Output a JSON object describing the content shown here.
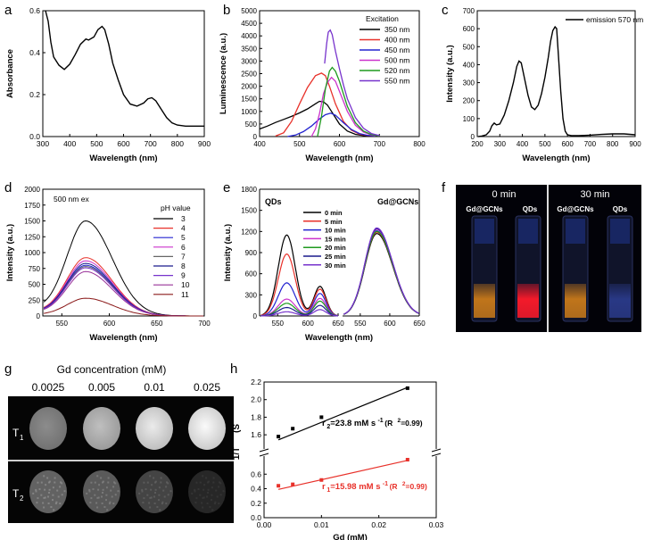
{
  "colors": {
    "black": "#000000",
    "red": "#e8312a",
    "blue": "#2323d0",
    "magenta": "#cc33cc",
    "green": "#1f9a1f",
    "purple": "#7733cc",
    "darkred": "#8b1a1a",
    "gray": "#666666",
    "navy": "#1a1a8c"
  },
  "panel_labels": [
    "a",
    "b",
    "c",
    "d",
    "e",
    "f",
    "g",
    "h"
  ],
  "chart_data": [
    {
      "id": "a",
      "type": "line",
      "title": "",
      "xlabel": "Wavelength (nm)",
      "ylabel": "Absorbance",
      "xlim": [
        300,
        900
      ],
      "ylim": [
        0.0,
        0.6
      ],
      "xticks": [
        300,
        400,
        500,
        600,
        700,
        800,
        900
      ],
      "yticks": [
        0.0,
        0.2,
        0.4,
        0.6
      ],
      "xticklabels": [
        "300",
        "400",
        "500",
        "600",
        "700",
        "800",
        "900"
      ],
      "yticklabels": [
        "0.0",
        "0.2",
        "0.4",
        "0.6"
      ],
      "series": [
        {
          "name": "absorbance",
          "color": "#000000",
          "x": [
            310,
            320,
            330,
            340,
            360,
            380,
            400,
            420,
            440,
            460,
            470,
            490,
            505,
            520,
            530,
            545,
            560,
            580,
            600,
            625,
            650,
            675,
            690,
            705,
            720,
            740,
            760,
            780,
            800,
            830,
            860,
            900
          ],
          "y": [
            0.6,
            0.55,
            0.45,
            0.38,
            0.34,
            0.32,
            0.345,
            0.39,
            0.44,
            0.465,
            0.46,
            0.475,
            0.51,
            0.525,
            0.51,
            0.44,
            0.35,
            0.27,
            0.2,
            0.155,
            0.145,
            0.16,
            0.18,
            0.185,
            0.17,
            0.13,
            0.09,
            0.065,
            0.055,
            0.05,
            0.05,
            0.05
          ]
        }
      ]
    },
    {
      "id": "b",
      "type": "line",
      "title": "",
      "xlabel": "Wavelength (nm)",
      "ylabel": "Luminescence (a.u.)",
      "xlim": [
        400,
        800
      ],
      "ylim": [
        0,
        5000
      ],
      "xticks": [
        400,
        500,
        600,
        700,
        800
      ],
      "yticks": [
        0,
        500,
        1000,
        1500,
        2000,
        2500,
        3000,
        3500,
        4000,
        4500,
        5000
      ],
      "xticklabels": [
        "400",
        "500",
        "600",
        "700",
        "800"
      ],
      "yticklabels": [
        "0",
        "500",
        "1000",
        "1500",
        "2000",
        "2500",
        "3000",
        "3500",
        "4000",
        "4500",
        "5000"
      ],
      "legend_title": "Excitation",
      "legend_position": "top-right",
      "series": [
        {
          "name": "350 nm",
          "color": "#000000",
          "x": [
            400,
            420,
            440,
            460,
            480,
            500,
            520,
            540,
            550,
            560,
            570,
            580,
            600,
            620,
            640,
            660,
            680,
            700
          ],
          "y": [
            300,
            420,
            560,
            680,
            800,
            940,
            1100,
            1300,
            1400,
            1380,
            1250,
            1000,
            500,
            220,
            90,
            40,
            20,
            10
          ]
        },
        {
          "name": "400 nm",
          "color": "#e8312a",
          "x": [
            440,
            460,
            480,
            500,
            520,
            540,
            555,
            565,
            575,
            590,
            610,
            630,
            650,
            670,
            690
          ],
          "y": [
            20,
            150,
            600,
            1300,
            1950,
            2420,
            2520,
            2420,
            2000,
            1300,
            600,
            250,
            100,
            40,
            20
          ]
        },
        {
          "name": "450 nm",
          "color": "#2323d0",
          "x": [
            470,
            490,
            510,
            530,
            550,
            565,
            578,
            590,
            610,
            630,
            650,
            670,
            690
          ],
          "y": [
            0,
            60,
            200,
            420,
            700,
            870,
            930,
            850,
            550,
            280,
            120,
            50,
            20
          ]
        },
        {
          "name": "500 nm",
          "color": "#cc33cc",
          "x": [
            530,
            540,
            550,
            560,
            570,
            580,
            590,
            600,
            620,
            640,
            660,
            680,
            700
          ],
          "y": [
            0,
            300,
            900,
            1700,
            2150,
            2350,
            2200,
            1800,
            1000,
            450,
            180,
            60,
            20
          ]
        },
        {
          "name": "520 nm",
          "color": "#1f9a1f",
          "x": [
            545,
            555,
            565,
            575,
            582,
            590,
            600,
            620,
            640,
            660,
            680,
            700
          ],
          "y": [
            0,
            800,
            1900,
            2600,
            2750,
            2600,
            2200,
            1200,
            550,
            220,
            80,
            20
          ]
        },
        {
          "name": "550 nm",
          "color": "#7733cc",
          "x": [
            563,
            568,
            572,
            577,
            582,
            590,
            600,
            610,
            620,
            640,
            660,
            680,
            700
          ],
          "y": [
            2900,
            3700,
            4150,
            4230,
            4050,
            3400,
            2700,
            2050,
            1500,
            750,
            330,
            120,
            40
          ]
        }
      ]
    },
    {
      "id": "c",
      "type": "line",
      "title": "",
      "xlabel": "Wavelength (nm)",
      "ylabel": "Intensity (a.u.)",
      "xlim": [
        200,
        900
      ],
      "ylim": [
        0,
        700
      ],
      "xticks": [
        200,
        300,
        400,
        500,
        600,
        700,
        800,
        900
      ],
      "yticks": [
        0,
        100,
        200,
        300,
        400,
        500,
        600,
        700
      ],
      "xticklabels": [
        "200",
        "300",
        "400",
        "500",
        "600",
        "700",
        "800",
        "900"
      ],
      "yticklabels": [
        "0",
        "100",
        "200",
        "300",
        "400",
        "500",
        "600",
        "700"
      ],
      "legend_position": "top-right",
      "series": [
        {
          "name": "emission 570 nm",
          "color": "#000000",
          "x": [
            205,
            220,
            240,
            255,
            265,
            275,
            285,
            300,
            320,
            340,
            360,
            375,
            385,
            395,
            410,
            425,
            440,
            455,
            470,
            485,
            500,
            515,
            525,
            535,
            545,
            552,
            560,
            570,
            580,
            590,
            600,
            620,
            650,
            700,
            750,
            800,
            850,
            900
          ],
          "y": [
            0,
            3,
            10,
            30,
            60,
            75,
            65,
            70,
            120,
            200,
            300,
            390,
            420,
            410,
            320,
            230,
            165,
            150,
            175,
            240,
            330,
            440,
            530,
            590,
            610,
            600,
            450,
            250,
            100,
            30,
            10,
            5,
            5,
            8,
            12,
            15,
            15,
            10
          ]
        }
      ]
    },
    {
      "id": "d",
      "type": "line",
      "title": "",
      "xlabel": "Wavelength (nm)",
      "ylabel": "Intensity (a.u.)",
      "annotation": "500 nm ex",
      "xlim": [
        530,
        700
      ],
      "ylim": [
        0,
        2000
      ],
      "xticks": [
        550,
        600,
        650,
        700
      ],
      "yticks": [
        0,
        250,
        500,
        750,
        1000,
        1250,
        1500,
        1750,
        2000
      ],
      "xticklabels": [
        "550",
        "600",
        "650",
        "700"
      ],
      "yticklabels": [
        "0",
        "250",
        "500",
        "750",
        "1000",
        "1250",
        "1500",
        "1750",
        "2000"
      ],
      "legend_title": "pH value",
      "legend_position": "top-right",
      "peak_x": 575,
      "series": [
        {
          "name": "3",
          "color": "#000000",
          "peak": 1500
        },
        {
          "name": "4",
          "color": "#e8312a",
          "peak": 920
        },
        {
          "name": "5",
          "color": "#2323d0",
          "peak": 800
        },
        {
          "name": "6",
          "color": "#cc33cc",
          "peak": 870
        },
        {
          "name": "7",
          "color": "#666666",
          "peak": 780
        },
        {
          "name": "8",
          "color": "#1a1a8c",
          "peak": 830
        },
        {
          "name": "9",
          "color": "#7733cc",
          "peak": 760
        },
        {
          "name": "10",
          "color": "#993399",
          "peak": 700
        },
        {
          "name": "11",
          "color": "#8b1a1a",
          "peak": 280
        }
      ]
    },
    {
      "id": "e",
      "type": "line",
      "title": "",
      "xlabel": "Wavelength (nm)",
      "ylabel": "Intensity (a.u.)",
      "ylim": [
        0,
        1800
      ],
      "yticks": [
        0,
        150,
        300,
        450,
        600,
        750,
        900,
        1050,
        1200,
        1350,
        1500,
        1650,
        1800
      ],
      "yticklabels": [
        "0",
        "150",
        "300",
        "450",
        "600",
        "750",
        "900",
        "1050",
        "1200",
        "1350",
        "1500",
        "1650",
        "1800"
      ],
      "subpanels": [
        {
          "label": "QDs",
          "xlim": [
            520,
            650
          ],
          "xticks": [
            550,
            600,
            650
          ],
          "xticklabels": [
            "550",
            "600",
            "650"
          ]
        },
        {
          "label": "Gd@GCNs",
          "xlim": [
            520,
            650
          ],
          "xticks": [
            550,
            600,
            650
          ],
          "xticklabels": [
            "550",
            "600",
            "650"
          ]
        }
      ],
      "series": [
        {
          "name": "0 min",
          "color": "#000000",
          "qd_peak": 1150,
          "qd_shoulder": 420,
          "gd_peak": 1170
        },
        {
          "name": "5 min",
          "color": "#e8312a",
          "qd_peak": 880,
          "qd_shoulder": 380,
          "gd_peak": 1190
        },
        {
          "name": "10 min",
          "color": "#2323d0",
          "qd_peak": 470,
          "qd_shoulder": 320,
          "gd_peak": 1210
        },
        {
          "name": "15 min",
          "color": "#cc33cc",
          "qd_peak": 240,
          "qd_shoulder": 250,
          "gd_peak": 1230
        },
        {
          "name": "20 min",
          "color": "#1f9a1f",
          "qd_peak": 180,
          "qd_shoulder": 210,
          "gd_peak": 1200
        },
        {
          "name": "25 min",
          "color": "#1a1a8c",
          "qd_peak": 120,
          "qd_shoulder": 150,
          "gd_peak": 1240
        },
        {
          "name": "30 min",
          "color": "#7733cc",
          "qd_peak": 60,
          "qd_shoulder": 90,
          "gd_peak": 1250
        }
      ]
    },
    {
      "id": "f",
      "type": "table",
      "headers": [
        "0 min",
        "30 min"
      ],
      "vial_labels": [
        "Gd@GCNs",
        "QDs",
        "Gd@GCNs",
        "QDs"
      ],
      "vial_colors": [
        "#c97a1a",
        "#ff1a2a",
        "#c97a1a",
        "#2a3a8a"
      ]
    },
    {
      "id": "g",
      "type": "heatmap",
      "title": "Gd concentration (mM)",
      "columns": [
        "0.0025",
        "0.005",
        "0.01",
        "0.025"
      ],
      "rows": [
        "T",
        "T"
      ],
      "row_subscripts": [
        "1",
        "2"
      ],
      "t1_brightness": [
        0.55,
        0.75,
        0.92,
        0.98
      ],
      "t2_brightness": [
        0.55,
        0.5,
        0.38,
        0.22
      ]
    },
    {
      "id": "h",
      "type": "scatter",
      "xlabel": "Gd (mM)",
      "ylabel_main": "1/T",
      "ylabel_unit": "(S",
      "xlim": [
        0.0,
        0.03
      ],
      "xticks": [
        0.0,
        0.01,
        0.02,
        0.03
      ],
      "xticklabels": [
        "0.00",
        "0.01",
        "0.02",
        "0.03"
      ],
      "upper_yticks": [
        1.6,
        1.8,
        2.0,
        2.2
      ],
      "upper_yticklabels": [
        "1.6",
        "1.8",
        "2.0",
        "2.2"
      ],
      "lower_yticks": [
        0.0,
        0.2,
        0.4,
        0.6
      ],
      "lower_yticklabels": [
        "0.0",
        "0.2",
        "0.4",
        "0.6"
      ],
      "series": [
        {
          "name": "T2",
          "color": "#000000",
          "x": [
            0.0025,
            0.005,
            0.01,
            0.025
          ],
          "y": [
            1.58,
            1.67,
            1.8,
            2.13
          ],
          "fit": [
            1.543,
            2.139
          ],
          "label": {
            "r": "r",
            "sub": "2",
            "val": "=23.8 mM s",
            "sup": "-1",
            "r2": " (R",
            "r2sup": "2",
            "r2val": "=0.99)"
          }
        },
        {
          "name": "T1",
          "color": "#e8312a",
          "x": [
            0.0025,
            0.005,
            0.01,
            0.025
          ],
          "y": [
            0.44,
            0.46,
            0.52,
            0.8
          ],
          "fit": [
            0.39,
            0.79
          ],
          "label": {
            "r": "r",
            "sub": "1",
            "val": "=15.98 mM s",
            "sup": "-1",
            "r2": " (R",
            "r2sup": "2",
            "r2val": "=0.99)"
          }
        }
      ]
    }
  ]
}
